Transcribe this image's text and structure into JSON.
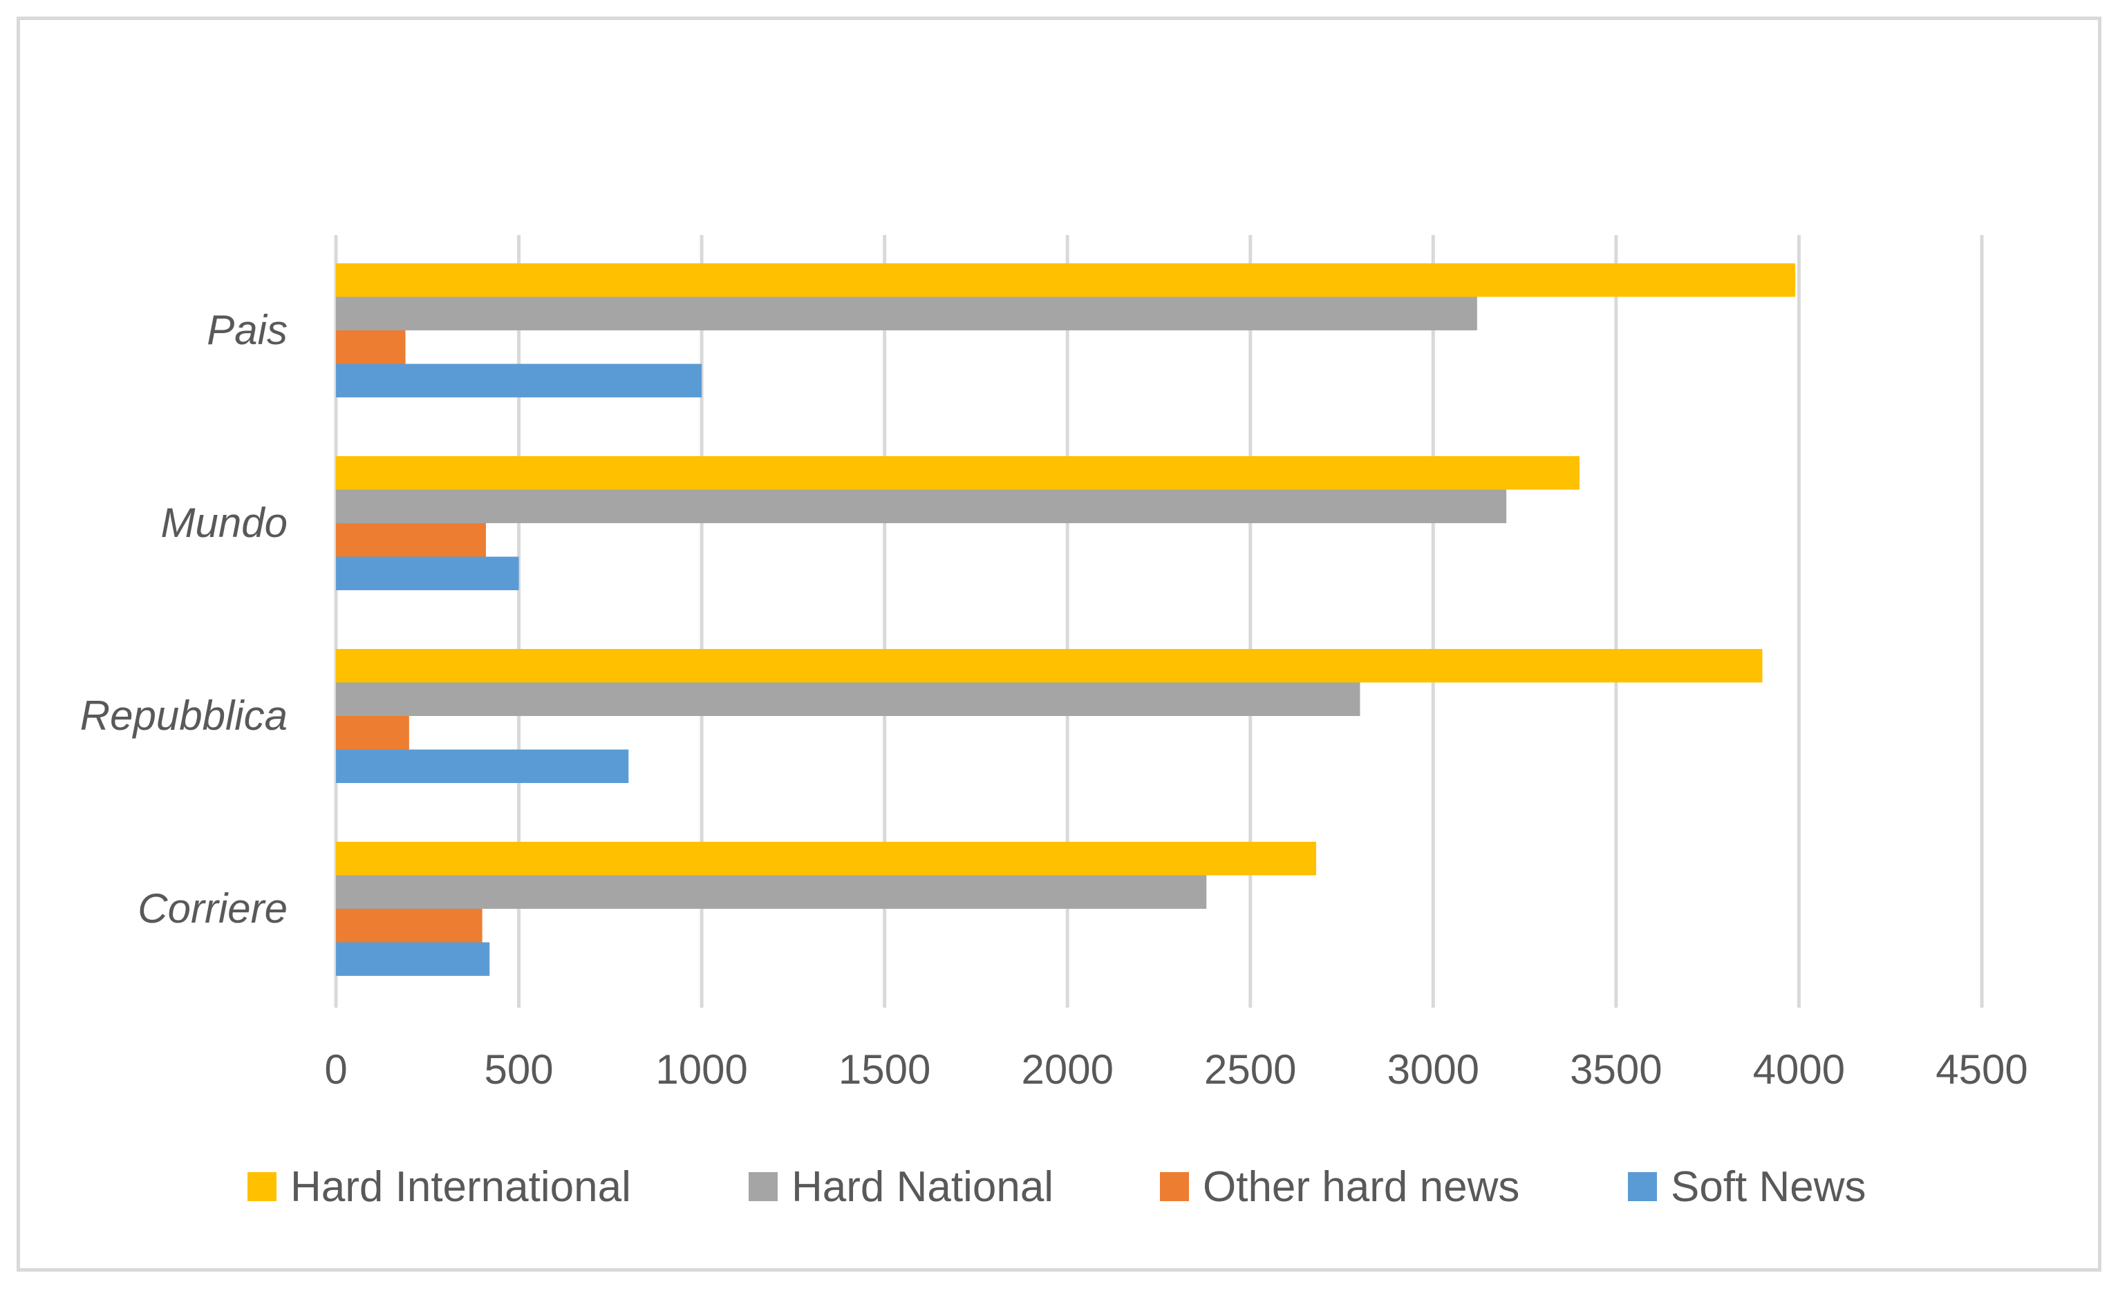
{
  "chart_data": {
    "type": "bar",
    "orientation": "horizontal",
    "categories": [
      "Pais",
      "Mundo",
      "Repubblica",
      "Corriere"
    ],
    "series": [
      {
        "name": "Hard International",
        "color": "#ffc000",
        "values": [
          3990,
          3400,
          3900,
          2680
        ]
      },
      {
        "name": "Hard National",
        "color": "#a5a5a5",
        "values": [
          3120,
          3200,
          2800,
          2380
        ]
      },
      {
        "name": "Other hard news",
        "color": "#ed7d31",
        "values": [
          190,
          410,
          200,
          400
        ]
      },
      {
        "name": "Soft News",
        "color": "#5b9bd5",
        "values": [
          1000,
          500,
          800,
          420
        ]
      }
    ],
    "x_ticks": [
      "0",
      "500",
      "1000",
      "1500",
      "2000",
      "2500",
      "3000",
      "3500",
      "4000",
      "4500"
    ],
    "xlim": [
      0,
      4500
    ],
    "grid": "vertical",
    "legend_position": "bottom",
    "title": "",
    "xlabel": "",
    "ylabel": ""
  }
}
